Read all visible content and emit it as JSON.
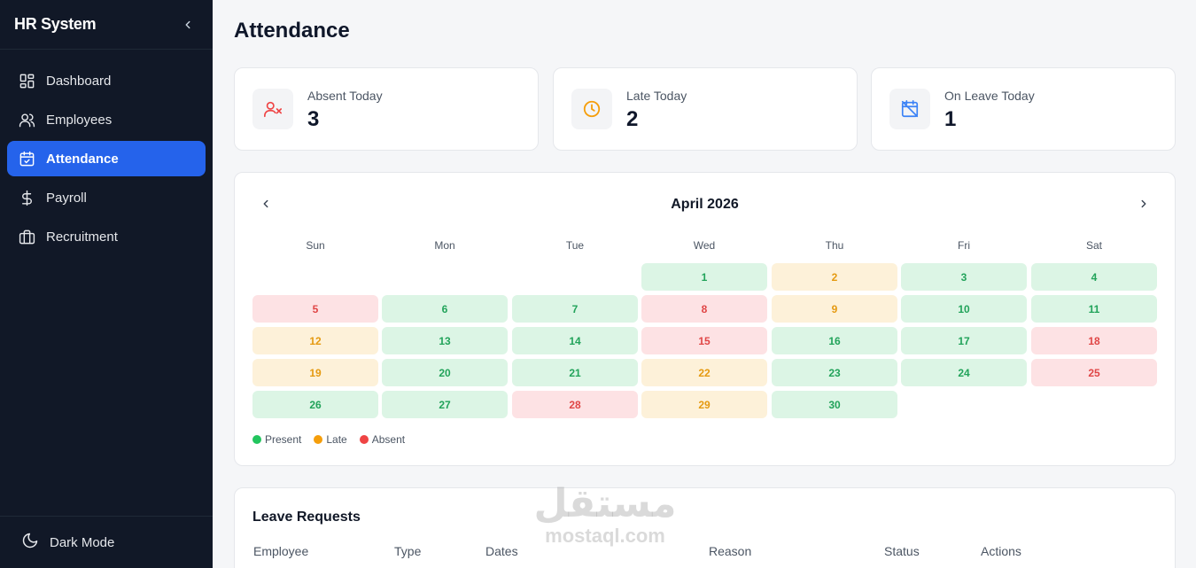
{
  "sidebar": {
    "brand": "HR System",
    "items": [
      {
        "label": "Dashboard",
        "icon": "dashboard-icon"
      },
      {
        "label": "Employees",
        "icon": "users-icon"
      },
      {
        "label": "Attendance",
        "icon": "calendar-check-icon",
        "active": true
      },
      {
        "label": "Payroll",
        "icon": "dollar-icon"
      },
      {
        "label": "Recruitment",
        "icon": "briefcase-icon"
      }
    ],
    "dark_mode_label": "Dark Mode"
  },
  "page": {
    "title": "Attendance"
  },
  "stats": [
    {
      "label": "Absent Today",
      "value": "3",
      "icon": "user-x-icon",
      "color": "#ef4444"
    },
    {
      "label": "Late Today",
      "value": "2",
      "icon": "clock-icon",
      "color": "#f59e0b"
    },
    {
      "label": "On Leave Today",
      "value": "1",
      "icon": "calendar-off-icon",
      "color": "#3b82f6"
    }
  ],
  "calendar": {
    "month": "April 2026",
    "weekdays": [
      "Sun",
      "Mon",
      "Tue",
      "Wed",
      "Thu",
      "Fri",
      "Sat"
    ],
    "first_weekday_index": 3,
    "days": [
      {
        "day": "1",
        "status": "present"
      },
      {
        "day": "2",
        "status": "late"
      },
      {
        "day": "3",
        "status": "present"
      },
      {
        "day": "4",
        "status": "present"
      },
      {
        "day": "5",
        "status": "absent"
      },
      {
        "day": "6",
        "status": "present"
      },
      {
        "day": "7",
        "status": "present"
      },
      {
        "day": "8",
        "status": "absent"
      },
      {
        "day": "9",
        "status": "late"
      },
      {
        "day": "10",
        "status": "present"
      },
      {
        "day": "11",
        "status": "present"
      },
      {
        "day": "12",
        "status": "late"
      },
      {
        "day": "13",
        "status": "present"
      },
      {
        "day": "14",
        "status": "present"
      },
      {
        "day": "15",
        "status": "absent"
      },
      {
        "day": "16",
        "status": "present"
      },
      {
        "day": "17",
        "status": "present"
      },
      {
        "day": "18",
        "status": "absent"
      },
      {
        "day": "19",
        "status": "late"
      },
      {
        "day": "20",
        "status": "present"
      },
      {
        "day": "21",
        "status": "present"
      },
      {
        "day": "22",
        "status": "late"
      },
      {
        "day": "23",
        "status": "present"
      },
      {
        "day": "24",
        "status": "present"
      },
      {
        "day": "25",
        "status": "absent"
      },
      {
        "day": "26",
        "status": "present"
      },
      {
        "day": "27",
        "status": "present"
      },
      {
        "day": "28",
        "status": "absent"
      },
      {
        "day": "29",
        "status": "late"
      },
      {
        "day": "30",
        "status": "present"
      }
    ],
    "legend": [
      {
        "label": "Present",
        "color": "#22c55e"
      },
      {
        "label": "Late",
        "color": "#f59e0b"
      },
      {
        "label": "Absent",
        "color": "#ef4444"
      }
    ]
  },
  "leave_requests": {
    "title": "Leave Requests",
    "columns": [
      "Employee",
      "Type",
      "Dates",
      "Reason",
      "Status",
      "Actions"
    ]
  },
  "watermark": {
    "arabic": "مستقل",
    "latin": "mostaql.com"
  }
}
